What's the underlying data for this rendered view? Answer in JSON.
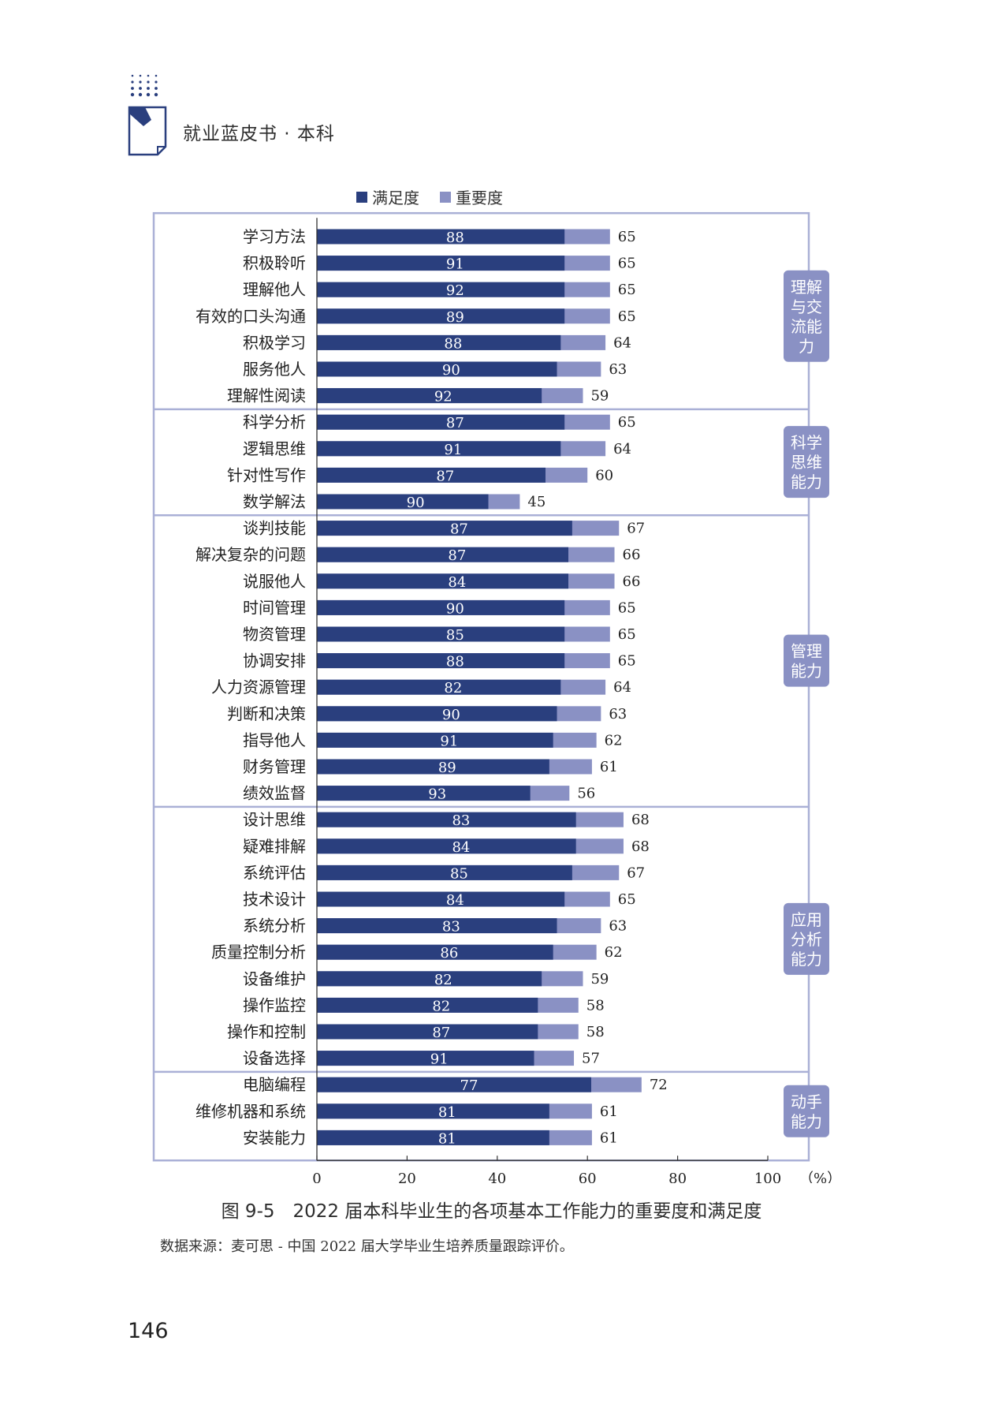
{
  "page": {
    "running_header": "就业蓝皮书 · 本科",
    "figure_caption": "图 9-5　2022 届本科毕业生的各项基本工作能力的重要度和满足度",
    "source_note": "数据来源：麦可思 - 中国 2022 届大学毕业生培养质量跟踪评价。",
    "page_number": "146"
  },
  "colors": {
    "satisfaction": "#2a3f7e",
    "importance": "#8a91c4",
    "frame": "#aab0d6",
    "group_label_bg": "#8a91c4",
    "header_blue": "#2a3f7e"
  },
  "chart_data": {
    "type": "bar",
    "legend": [
      {
        "name": "满足度",
        "color": "#2a3f7e"
      },
      {
        "name": "重要度",
        "color": "#8a91c4"
      }
    ],
    "xlabel": "",
    "x_unit": "（%）",
    "xlim": [
      0,
      100
    ],
    "x_ticks": [
      0,
      20,
      40,
      60,
      80,
      100
    ],
    "notes": "Total bar length = importance (label right of bar); dark segment labelled with satisfaction value.",
    "groups": [
      {
        "name": "理解与交流能力",
        "label_lines": [
          "理解",
          "与交",
          "流能",
          "力"
        ],
        "items": [
          {
            "category": "学习方法",
            "satisfaction": 88,
            "importance": 65
          },
          {
            "category": "积极聆听",
            "satisfaction": 91,
            "importance": 65
          },
          {
            "category": "理解他人",
            "satisfaction": 92,
            "importance": 65
          },
          {
            "category": "有效的口头沟通",
            "satisfaction": 89,
            "importance": 65
          },
          {
            "category": "积极学习",
            "satisfaction": 88,
            "importance": 64
          },
          {
            "category": "服务他人",
            "satisfaction": 90,
            "importance": 63
          },
          {
            "category": "理解性阅读",
            "satisfaction": 92,
            "importance": 59
          }
        ]
      },
      {
        "name": "科学思维能力",
        "label_lines": [
          "科学",
          "思维",
          "能力"
        ],
        "items": [
          {
            "category": "科学分析",
            "satisfaction": 87,
            "importance": 65
          },
          {
            "category": "逻辑思维",
            "satisfaction": 91,
            "importance": 64
          },
          {
            "category": "针对性写作",
            "satisfaction": 87,
            "importance": 60
          },
          {
            "category": "数学解法",
            "satisfaction": 90,
            "importance": 45
          }
        ]
      },
      {
        "name": "管理能力",
        "label_lines": [
          "管理",
          "能力"
        ],
        "items": [
          {
            "category": "谈判技能",
            "satisfaction": 87,
            "importance": 67
          },
          {
            "category": "解决复杂的问题",
            "satisfaction": 87,
            "importance": 66
          },
          {
            "category": "说服他人",
            "satisfaction": 84,
            "importance": 66
          },
          {
            "category": "时间管理",
            "satisfaction": 90,
            "importance": 65
          },
          {
            "category": "物资管理",
            "satisfaction": 85,
            "importance": 65
          },
          {
            "category": "协调安排",
            "satisfaction": 88,
            "importance": 65
          },
          {
            "category": "人力资源管理",
            "satisfaction": 82,
            "importance": 64
          },
          {
            "category": "判断和决策",
            "satisfaction": 90,
            "importance": 63
          },
          {
            "category": "指导他人",
            "satisfaction": 91,
            "importance": 62
          },
          {
            "category": "财务管理",
            "satisfaction": 89,
            "importance": 61
          },
          {
            "category": "绩效监督",
            "satisfaction": 93,
            "importance": 56
          }
        ]
      },
      {
        "name": "应用分析能力",
        "label_lines": [
          "应用",
          "分析",
          "能力"
        ],
        "items": [
          {
            "category": "设计思维",
            "satisfaction": 83,
            "importance": 68
          },
          {
            "category": "疑难排解",
            "satisfaction": 84,
            "importance": 68
          },
          {
            "category": "系统评估",
            "satisfaction": 85,
            "importance": 67
          },
          {
            "category": "技术设计",
            "satisfaction": 84,
            "importance": 65
          },
          {
            "category": "系统分析",
            "satisfaction": 83,
            "importance": 63
          },
          {
            "category": "质量控制分析",
            "satisfaction": 86,
            "importance": 62
          },
          {
            "category": "设备维护",
            "satisfaction": 82,
            "importance": 59
          },
          {
            "category": "操作监控",
            "satisfaction": 82,
            "importance": 58
          },
          {
            "category": "操作和控制",
            "satisfaction": 87,
            "importance": 58
          },
          {
            "category": "设备选择",
            "satisfaction": 91,
            "importance": 57
          }
        ]
      },
      {
        "name": "动手能力",
        "label_lines": [
          "动手",
          "能力"
        ],
        "items": [
          {
            "category": "电脑编程",
            "satisfaction": 77,
            "importance": 72
          },
          {
            "category": "维修机器和系统",
            "satisfaction": 81,
            "importance": 61
          },
          {
            "category": "安装能力",
            "satisfaction": 81,
            "importance": 61
          }
        ]
      }
    ]
  }
}
